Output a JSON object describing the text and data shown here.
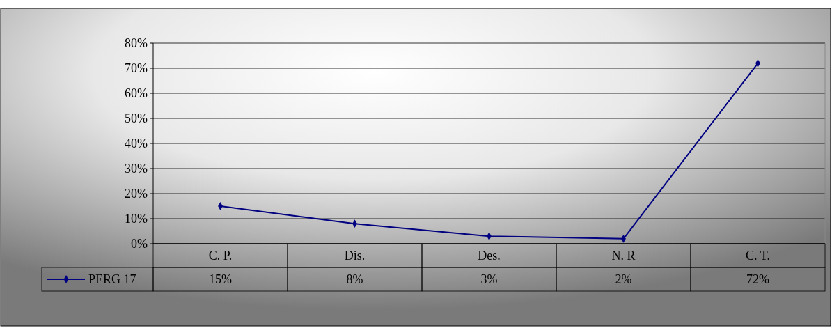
{
  "chart_data": {
    "type": "line",
    "categories": [
      "C. P.",
      "Dis.",
      "Des.",
      "N. R",
      "C. T."
    ],
    "series": [
      {
        "name": "PERG 17",
        "color": "#000080",
        "values": [
          15,
          8,
          3,
          2,
          72
        ],
        "value_labels": [
          "15%",
          "8%",
          "3%",
          "2%",
          "72%"
        ]
      }
    ],
    "ylim": [
      0,
      80
    ],
    "yticks": [
      {
        "value": 0,
        "label": "0%"
      },
      {
        "value": 10,
        "label": "10%"
      },
      {
        "value": 20,
        "label": "20%"
      },
      {
        "value": 30,
        "label": "30%"
      },
      {
        "value": 40,
        "label": "40%"
      },
      {
        "value": 50,
        "label": "50%"
      },
      {
        "value": 60,
        "label": "60%"
      },
      {
        "value": 70,
        "label": "70%"
      },
      {
        "value": 80,
        "label": "80%"
      }
    ],
    "grid": "y",
    "marker": "diamond",
    "line_style": "solid",
    "legend": "bottom left"
  }
}
